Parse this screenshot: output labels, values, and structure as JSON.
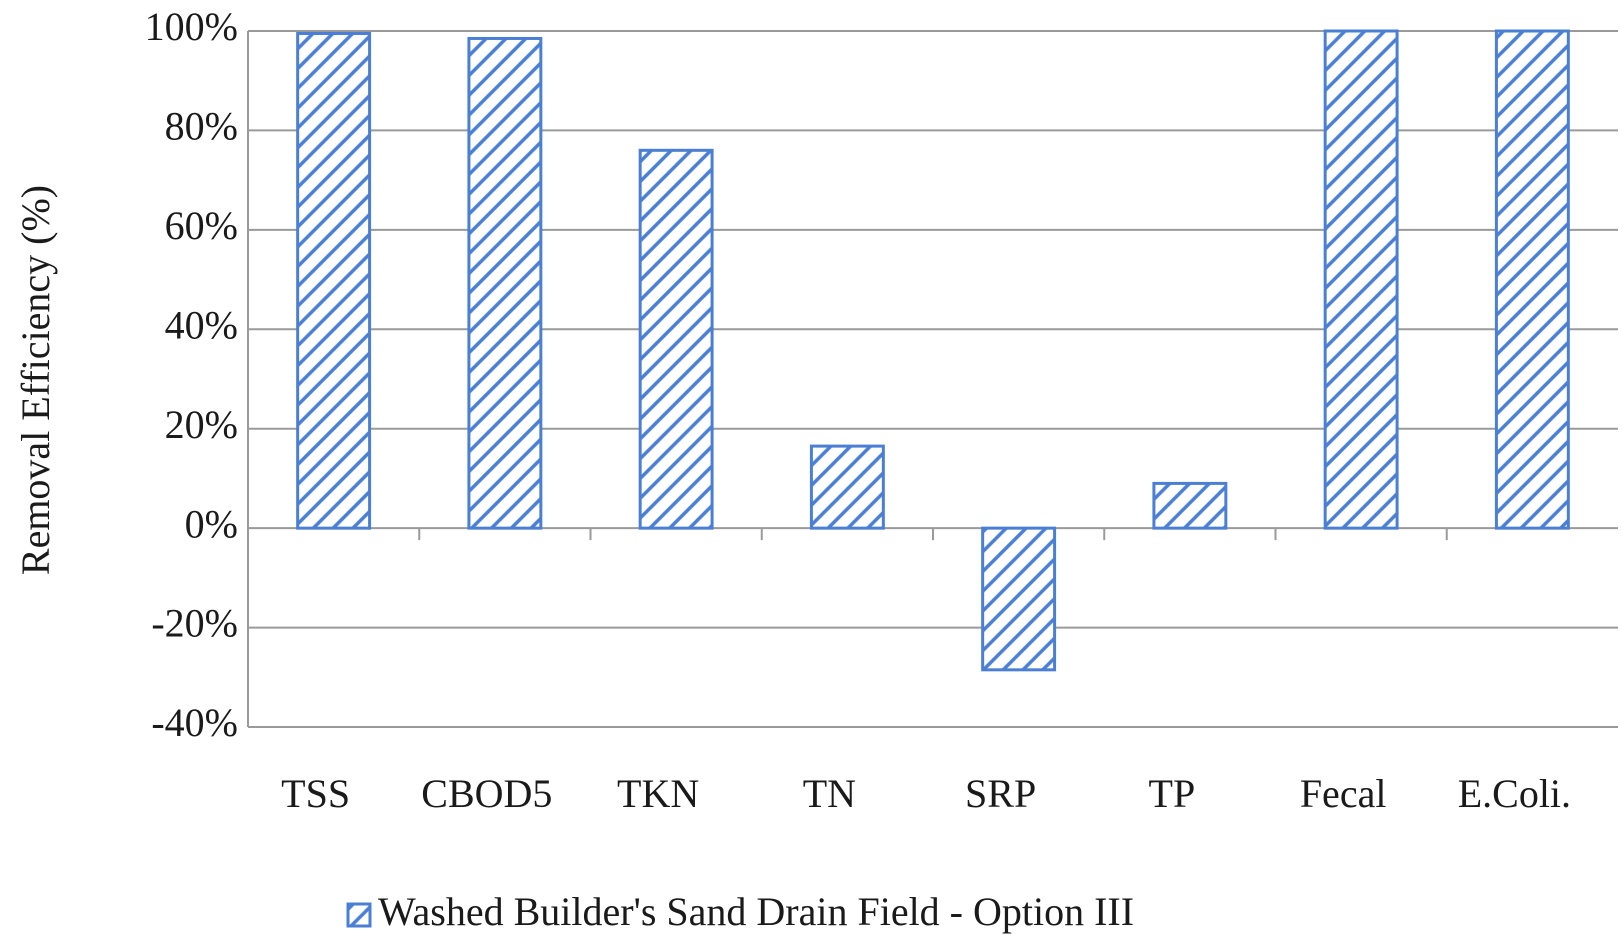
{
  "chart_data": {
    "type": "bar",
    "y_label": "Removal Efficiency (%)",
    "categories": [
      "TSS",
      "CBOD5",
      "TKN",
      "TN",
      "SRP",
      "TP",
      "Fecal",
      "E.Coli."
    ],
    "series": [
      {
        "name": "Washed Builder's Sand Drain Field - Option III",
        "color": "#4a7fd4",
        "values": [
          99.5,
          98.5,
          76,
          16.5,
          -28.5,
          9,
          100,
          100
        ]
      }
    ],
    "ylim": [
      -40,
      100
    ],
    "yticks": [
      {
        "value": -40,
        "label": "-40%"
      },
      {
        "value": -20,
        "label": "-20%"
      },
      {
        "value": 0,
        "label": "0%"
      },
      {
        "value": 20,
        "label": "20%"
      },
      {
        "value": 40,
        "label": "40%"
      },
      {
        "value": 60,
        "label": "60%"
      },
      {
        "value": 80,
        "label": "80%"
      },
      {
        "value": 100,
        "label": "100%"
      }
    ],
    "grid": true
  }
}
